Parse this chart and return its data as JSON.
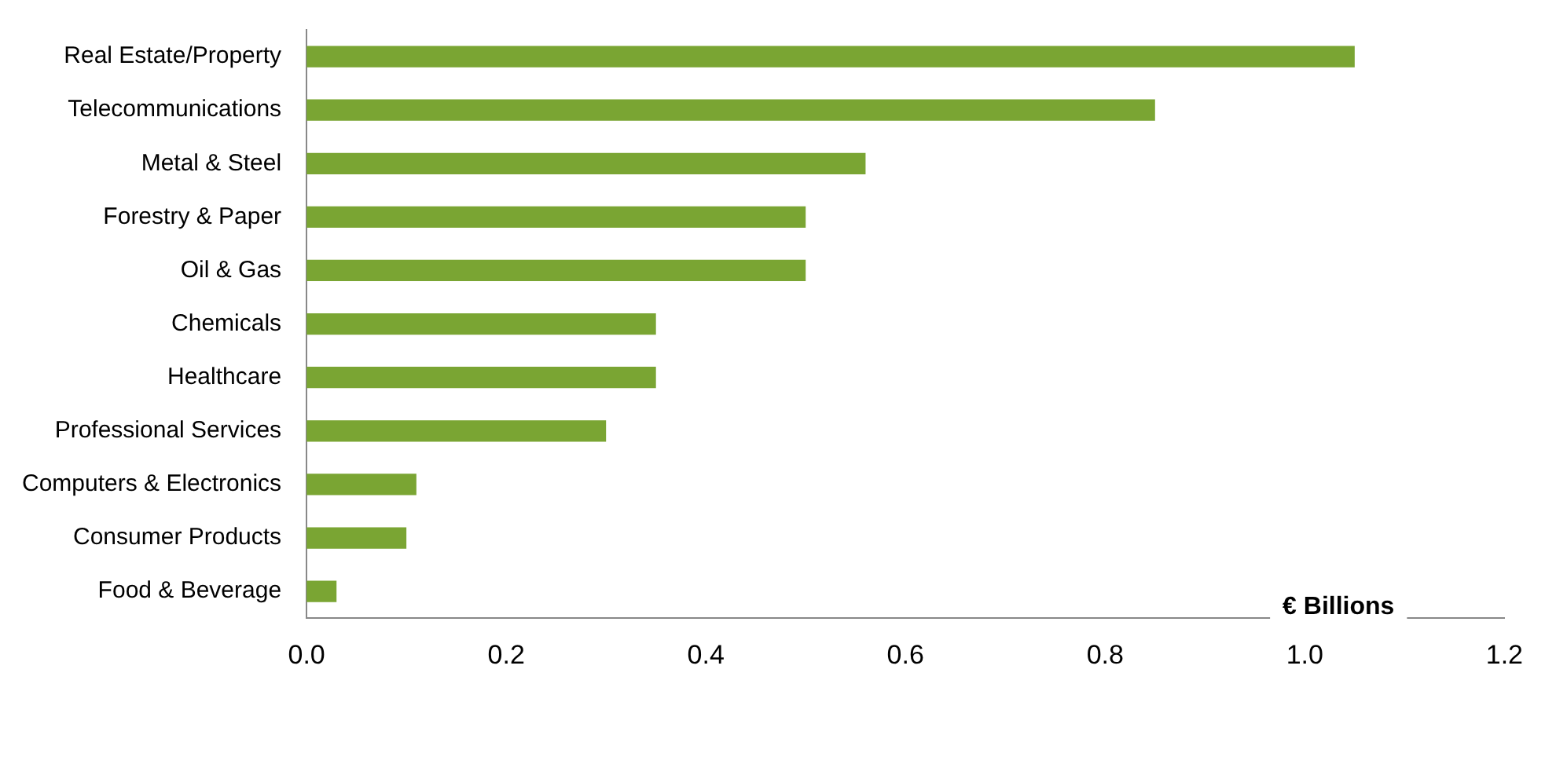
{
  "chart_data": {
    "type": "bar",
    "orientation": "horizontal",
    "xlabel": "€ Billions",
    "categories": [
      "Real Estate/Property",
      "Telecommunications",
      "Metal & Steel",
      "Forestry & Paper",
      "Oil & Gas",
      "Chemicals",
      "Healthcare",
      "Professional Services",
      "Computers & Electronics",
      "Consumer Products",
      "Food & Beverage"
    ],
    "values": [
      1.05,
      0.85,
      0.56,
      0.5,
      0.5,
      0.35,
      0.35,
      0.3,
      0.11,
      0.1,
      0.03
    ],
    "color": "#7aa533",
    "xlim": [
      0,
      1.2
    ],
    "xticks": [
      {
        "value": 0,
        "label": "0.0"
      },
      {
        "value": 0.2,
        "label": "0.2"
      },
      {
        "value": 0.4,
        "label": "0.4"
      },
      {
        "value": 0.6,
        "label": "0.6"
      },
      {
        "value": 0.8,
        "label": "0.8"
      },
      {
        "value": 1,
        "label": "1.0"
      },
      {
        "value": 1.2,
        "label": "1.2"
      }
    ],
    "grid": false,
    "legend": false
  }
}
